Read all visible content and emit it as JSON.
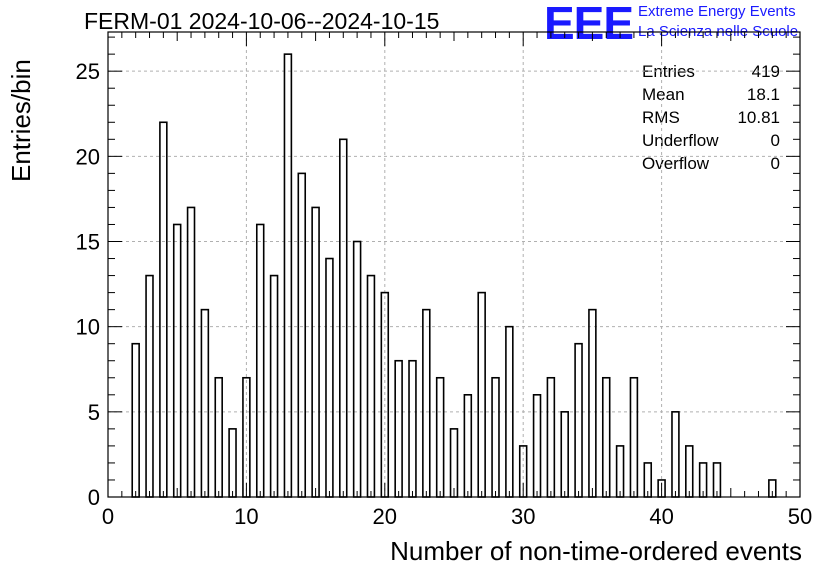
{
  "header": {
    "title": "FERM-01 2024-10-06--2024-10-15",
    "logo_mark": "EEE",
    "logo_line1": "Extreme Energy Events",
    "logo_line2": "La Scienza nelle Scuole"
  },
  "stats": {
    "entries_label": "Entries",
    "entries_value": "419",
    "mean_label": "Mean",
    "mean_value": "18.1",
    "rms_label": "RMS",
    "rms_value": "10.81",
    "underflow_label": "Underflow",
    "underflow_value": "0",
    "overflow_label": "Overflow",
    "overflow_value": "0"
  },
  "colors": {
    "logo": "#1a1aff",
    "bars": "#000000",
    "grid": "#b0b0b0"
  },
  "chart_data": {
    "type": "bar",
    "xlabel": "Number of non-time-ordered events",
    "ylabel": "Entries/bin",
    "xlim": [
      0,
      50
    ],
    "ylim": [
      0,
      27.3
    ],
    "bin_width": 0.5,
    "grid": true,
    "x_ticks": [
      0,
      10,
      20,
      30,
      40,
      50
    ],
    "y_ticks": [
      0,
      5,
      10,
      15,
      20,
      25
    ],
    "bins": [
      {
        "x": 2,
        "value": 9
      },
      {
        "x": 3,
        "value": 13
      },
      {
        "x": 4,
        "value": 22
      },
      {
        "x": 5,
        "value": 16
      },
      {
        "x": 6,
        "value": 17
      },
      {
        "x": 7,
        "value": 11
      },
      {
        "x": 8,
        "value": 7
      },
      {
        "x": 9,
        "value": 4
      },
      {
        "x": 10,
        "value": 7
      },
      {
        "x": 11,
        "value": 16
      },
      {
        "x": 12,
        "value": 13
      },
      {
        "x": 13,
        "value": 26
      },
      {
        "x": 14,
        "value": 19
      },
      {
        "x": 15,
        "value": 17
      },
      {
        "x": 16,
        "value": 14
      },
      {
        "x": 17,
        "value": 21
      },
      {
        "x": 18,
        "value": 15
      },
      {
        "x": 19,
        "value": 13
      },
      {
        "x": 20,
        "value": 12
      },
      {
        "x": 21,
        "value": 8
      },
      {
        "x": 22,
        "value": 8
      },
      {
        "x": 23,
        "value": 11
      },
      {
        "x": 24,
        "value": 7
      },
      {
        "x": 25,
        "value": 4
      },
      {
        "x": 26,
        "value": 6
      },
      {
        "x": 27,
        "value": 12
      },
      {
        "x": 28,
        "value": 7
      },
      {
        "x": 29,
        "value": 10
      },
      {
        "x": 30,
        "value": 3
      },
      {
        "x": 31,
        "value": 6
      },
      {
        "x": 32,
        "value": 7
      },
      {
        "x": 33,
        "value": 5
      },
      {
        "x": 34,
        "value": 9
      },
      {
        "x": 35,
        "value": 11
      },
      {
        "x": 36,
        "value": 7
      },
      {
        "x": 37,
        "value": 3
      },
      {
        "x": 38,
        "value": 7
      },
      {
        "x": 39,
        "value": 2
      },
      {
        "x": 40,
        "value": 1
      },
      {
        "x": 41,
        "value": 5
      },
      {
        "x": 42,
        "value": 3
      },
      {
        "x": 43,
        "value": 2
      },
      {
        "x": 44,
        "value": 2
      },
      {
        "x": 48,
        "value": 1
      }
    ]
  }
}
